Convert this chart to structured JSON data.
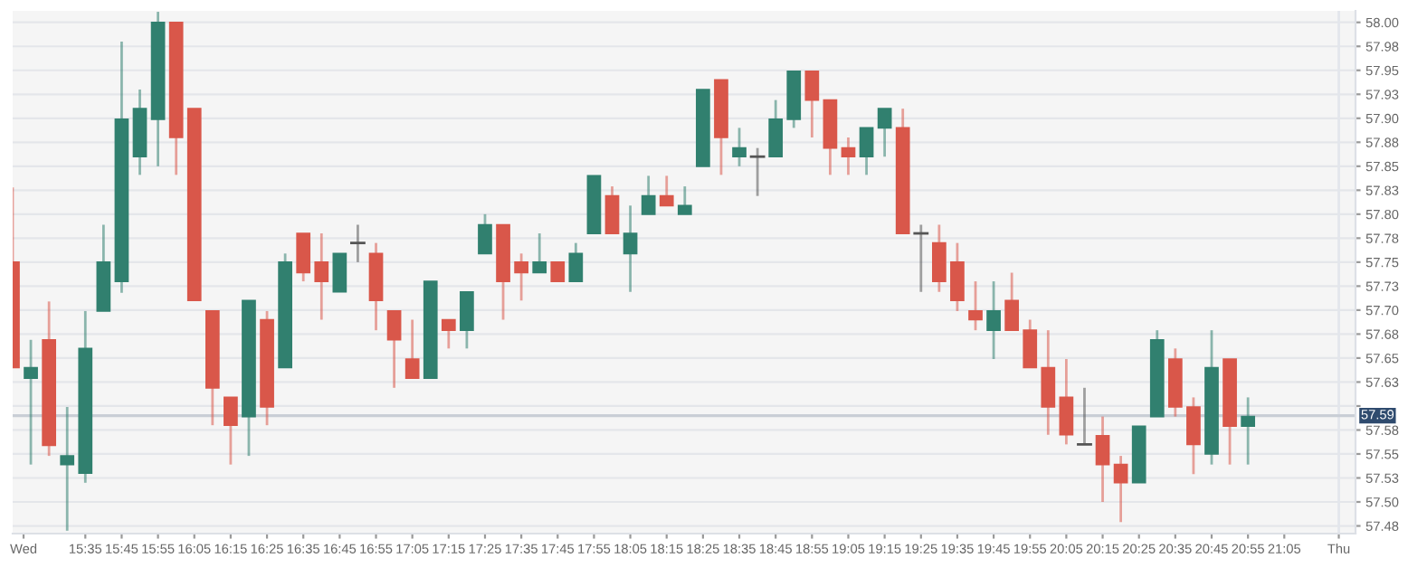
{
  "chart_data": {
    "type": "candlestick",
    "x": [
      15.25,
      15.3333,
      15.4167,
      15.5,
      15.5833,
      15.6667,
      15.75,
      15.8333,
      15.9167,
      16,
      16.0833,
      16.1667,
      16.25,
      16.3333,
      16.4167,
      16.5,
      16.5833,
      16.6667,
      16.75,
      16.8333,
      16.9167,
      17,
      17.0833,
      17.1667,
      17.25,
      17.3333,
      17.4167,
      17.5,
      17.5833,
      17.6667,
      17.75,
      17.8333,
      17.9167,
      18,
      18.0833,
      18.1667,
      18.25,
      18.3333,
      18.4167,
      18.5,
      18.5833,
      18.6667,
      18.75,
      18.8333,
      18.9167,
      19,
      19.0833,
      19.1667,
      19.25,
      19.3333,
      19.4167,
      19.5,
      19.5833,
      19.6667,
      19.75,
      19.8333,
      19.9167,
      20,
      20.0833,
      20.1667,
      20.25,
      20.3333,
      20.4167,
      20.5,
      20.5833,
      20.6667,
      20.75,
      20.8333,
      20.9167
    ],
    "ohlc": [
      [
        57.75,
        57.828,
        57.64,
        57.64
      ],
      [
        57.629,
        57.669,
        57.539,
        57.64
      ],
      [
        57.669,
        57.709,
        57.548,
        57.559
      ],
      [
        57.539,
        57.599,
        57.47,
        57.548
      ],
      [
        57.53,
        57.699,
        57.52,
        57.66
      ],
      [
        57.699,
        57.789,
        57.699,
        57.75
      ],
      [
        57.73,
        57.98,
        57.718,
        57.899
      ],
      [
        57.86,
        57.93,
        57.841,
        57.91
      ],
      [
        57.899,
        58.011,
        57.85,
        58.0
      ],
      [
        58.0,
        58.0,
        57.841,
        57.88
      ],
      [
        57.91,
        57.91,
        57.71,
        57.71
      ],
      [
        57.699,
        57.699,
        57.58,
        57.619
      ],
      [
        57.609,
        57.609,
        57.539,
        57.58
      ],
      [
        57.589,
        57.71,
        57.548,
        57.71
      ],
      [
        57.69,
        57.699,
        57.58,
        57.599
      ],
      [
        57.64,
        57.759,
        57.64,
        57.75
      ],
      [
        57.78,
        57.78,
        57.73,
        57.739
      ],
      [
        57.75,
        57.78,
        57.69,
        57.73
      ],
      [
        57.719,
        57.759,
        57.719,
        57.759
      ],
      [
        57.77,
        57.789,
        57.75,
        57.77
      ],
      [
        57.759,
        57.77,
        57.679,
        57.71
      ],
      [
        57.699,
        57.699,
        57.619,
        57.669
      ],
      [
        57.649,
        57.69,
        57.629,
        57.629
      ],
      [
        57.629,
        57.73,
        57.629,
        57.73
      ],
      [
        57.69,
        57.69,
        57.66,
        57.679
      ],
      [
        57.679,
        57.719,
        57.66,
        57.719
      ],
      [
        57.759,
        57.8,
        57.759,
        57.789
      ],
      [
        57.789,
        57.789,
        57.69,
        57.73
      ],
      [
        57.75,
        57.759,
        57.71,
        57.739
      ],
      [
        57.739,
        57.78,
        57.739,
        57.75
      ],
      [
        57.75,
        57.75,
        57.73,
        57.73
      ],
      [
        57.73,
        57.77,
        57.73,
        57.759
      ],
      [
        57.78,
        57.84,
        57.78,
        57.84
      ],
      [
        57.819,
        57.829,
        57.78,
        57.78
      ],
      [
        57.759,
        57.809,
        57.719,
        57.78
      ],
      [
        57.8,
        57.84,
        57.8,
        57.819
      ],
      [
        57.819,
        57.84,
        57.809,
        57.809
      ],
      [
        57.8,
        57.829,
        57.8,
        57.809
      ],
      [
        57.85,
        57.93,
        57.85,
        57.93
      ],
      [
        57.94,
        57.94,
        57.841,
        57.88
      ],
      [
        57.86,
        57.89,
        57.85,
        57.869
      ],
      [
        57.86,
        57.869,
        57.819,
        57.86
      ],
      [
        57.86,
        57.919,
        57.86,
        57.899
      ],
      [
        57.899,
        57.949,
        57.89,
        57.949
      ],
      [
        57.949,
        57.949,
        57.88,
        57.919
      ],
      [
        57.919,
        57.919,
        57.841,
        57.869
      ],
      [
        57.869,
        57.88,
        57.841,
        57.86
      ],
      [
        57.86,
        57.89,
        57.841,
        57.89
      ],
      [
        57.89,
        57.91,
        57.86,
        57.91
      ],
      [
        57.89,
        57.91,
        57.78,
        57.78
      ],
      [
        57.78,
        57.789,
        57.719,
        57.78
      ],
      [
        57.77,
        57.789,
        57.719,
        57.73
      ],
      [
        57.75,
        57.77,
        57.699,
        57.71
      ],
      [
        57.699,
        57.73,
        57.679,
        57.69
      ],
      [
        57.679,
        57.73,
        57.649,
        57.699
      ],
      [
        57.71,
        57.739,
        57.679,
        57.679
      ],
      [
        57.679,
        57.69,
        57.64,
        57.64
      ],
      [
        57.64,
        57.679,
        57.57,
        57.599
      ],
      [
        57.609,
        57.649,
        57.56,
        57.57
      ],
      [
        57.56,
        57.619,
        57.56,
        57.56
      ],
      [
        57.569,
        57.589,
        57.5,
        57.539
      ],
      [
        57.539,
        57.548,
        57.479,
        57.52
      ],
      [
        57.52,
        57.579,
        57.52,
        57.579
      ],
      [
        57.589,
        57.679,
        57.589,
        57.669
      ],
      [
        57.649,
        57.66,
        57.589,
        57.599
      ],
      [
        57.599,
        57.609,
        57.529,
        57.56
      ],
      [
        57.55,
        57.679,
        57.539,
        57.64
      ],
      [
        57.649,
        57.649,
        57.539,
        57.579
      ],
      [
        57.579,
        57.609,
        57.539,
        57.589
      ]
    ],
    "colors": [
      "#d9574a",
      "#31806f",
      "#d9574a",
      "#31806f",
      "#31806f",
      "#31806f",
      "#31806f",
      "#31806f",
      "#31806f",
      "#d9574a",
      "#d9574a",
      "#d9574a",
      "#d9574a",
      "#31806f",
      "#d9574a",
      "#31806f",
      "#d9574a",
      "#d9574a",
      "#31806f",
      "#555555",
      "#d9574a",
      "#d9574a",
      "#d9574a",
      "#31806f",
      "#d9574a",
      "#31806f",
      "#31806f",
      "#d9574a",
      "#d9574a",
      "#31806f",
      "#d9574a",
      "#31806f",
      "#31806f",
      "#d9574a",
      "#31806f",
      "#31806f",
      "#d9574a",
      "#31806f",
      "#31806f",
      "#d9574a",
      "#31806f",
      "#555555",
      "#31806f",
      "#31806f",
      "#d9574a",
      "#d9574a",
      "#d9574a",
      "#31806f",
      "#31806f",
      "#d9574a",
      "#555555",
      "#d9574a",
      "#d9574a",
      "#d9574a",
      "#31806f",
      "#d9574a",
      "#d9574a",
      "#d9574a",
      "#d9574a",
      "#555555",
      "#d9574a",
      "#d9574a",
      "#31806f",
      "#31806f",
      "#d9574a",
      "#d9574a",
      "#31806f",
      "#d9574a",
      "#31806f"
    ],
    "xlim": [
      15.25,
      21.41
    ],
    "xticks": [
      {
        "value": 15.3,
        "label": "Wed"
      },
      {
        "value": 15.5833,
        "label": "15:35"
      },
      {
        "value": 15.75,
        "label": "15:45"
      },
      {
        "value": 15.9167,
        "label": "15:55"
      },
      {
        "value": 16.0833,
        "label": "16:05"
      },
      {
        "value": 16.25,
        "label": "16:15"
      },
      {
        "value": 16.4167,
        "label": "16:25"
      },
      {
        "value": 16.5833,
        "label": "16:35"
      },
      {
        "value": 16.75,
        "label": "16:45"
      },
      {
        "value": 16.9167,
        "label": "16:55"
      },
      {
        "value": 17.0833,
        "label": "17:05"
      },
      {
        "value": 17.25,
        "label": "17:15"
      },
      {
        "value": 17.4167,
        "label": "17:25"
      },
      {
        "value": 17.5833,
        "label": "17:35"
      },
      {
        "value": 17.75,
        "label": "17:45"
      },
      {
        "value": 17.9167,
        "label": "17:55"
      },
      {
        "value": 18.0833,
        "label": "18:05"
      },
      {
        "value": 18.25,
        "label": "18:15"
      },
      {
        "value": 18.4167,
        "label": "18:25"
      },
      {
        "value": 18.5833,
        "label": "18:35"
      },
      {
        "value": 18.75,
        "label": "18:45"
      },
      {
        "value": 18.9167,
        "label": "18:55"
      },
      {
        "value": 19.0833,
        "label": "19:05"
      },
      {
        "value": 19.25,
        "label": "19:15"
      },
      {
        "value": 19.4167,
        "label": "19:25"
      },
      {
        "value": 19.5833,
        "label": "19:35"
      },
      {
        "value": 19.75,
        "label": "19:45"
      },
      {
        "value": 19.9167,
        "label": "19:55"
      },
      {
        "value": 20.0833,
        "label": "20:05"
      },
      {
        "value": 20.25,
        "label": "20:15"
      },
      {
        "value": 20.4167,
        "label": "20:25"
      },
      {
        "value": 20.5833,
        "label": "20:35"
      },
      {
        "value": 20.75,
        "label": "20:45"
      },
      {
        "value": 20.9167,
        "label": "20:55"
      },
      {
        "value": 21.0833,
        "label": "21:05"
      },
      {
        "value": 21.3333,
        "label": "Thu"
      }
    ],
    "ylim": [
      57.467,
      58.012
    ],
    "yticks": [
      {
        "value": 57.475,
        "label": "57.48"
      },
      {
        "value": 57.5,
        "label": "57.50"
      },
      {
        "value": 57.525,
        "label": "57.53"
      },
      57.55,
      {
        "value": 57.575,
        "label": "57.58"
      },
      {
        "value": 57.6,
        "label": null
      },
      {
        "value": 57.625,
        "label": "57.63"
      },
      57.65,
      {
        "value": 57.675,
        "label": "57.68"
      },
      {
        "value": 57.7,
        "label": "57.70"
      },
      {
        "value": 57.725,
        "label": "57.73"
      },
      57.75,
      {
        "value": 57.775,
        "label": "57.78"
      },
      {
        "value": 57.8,
        "label": "57.80"
      },
      {
        "value": 57.825,
        "label": "57.83"
      },
      57.85,
      {
        "value": 57.875,
        "label": "57.88"
      },
      {
        "value": 57.9,
        "label": "57.90"
      },
      {
        "value": 57.925,
        "label": "57.93"
      },
      57.95,
      {
        "value": 57.975,
        "label": "57.98"
      },
      {
        "value": 58.0,
        "label": "58.00"
      }
    ],
    "grid": "y",
    "ref_lines": [
      {
        "axis": "y",
        "value": 57.59,
        "label": "57.59",
        "color": "#c9ced6"
      },
      {
        "axis": "x",
        "value": 21.3333,
        "label": null,
        "color": "#e3e6ec"
      }
    ]
  }
}
